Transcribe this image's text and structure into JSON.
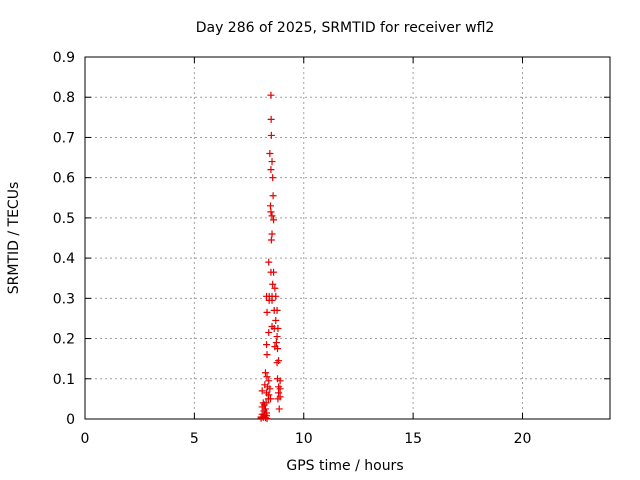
{
  "chart_data": {
    "type": "scatter",
    "title": "Day 286 of 2025, SRMTID for receiver wfl2",
    "xlabel": "GPS time / hours",
    "ylabel": "SRMTID / TECUs",
    "xlim": [
      0,
      24
    ],
    "ylim": [
      0,
      0.9
    ],
    "xticks": [
      0,
      5,
      10,
      15,
      20
    ],
    "yticks": [
      0,
      0.1,
      0.2,
      0.3,
      0.4,
      0.5,
      0.6,
      0.7,
      0.8,
      0.9
    ],
    "grid": true,
    "legend": "none",
    "marker": "plus",
    "color": "#e60000",
    "series": [
      {
        "points": [
          [
            8.5,
            0.805
          ],
          [
            8.51,
            0.745
          ],
          [
            8.52,
            0.705
          ],
          [
            8.45,
            0.66
          ],
          [
            8.55,
            0.64
          ],
          [
            8.5,
            0.62
          ],
          [
            8.58,
            0.6
          ],
          [
            8.6,
            0.555
          ],
          [
            8.48,
            0.53
          ],
          [
            8.5,
            0.515
          ],
          [
            8.55,
            0.505
          ],
          [
            8.62,
            0.495
          ],
          [
            8.55,
            0.46
          ],
          [
            8.52,
            0.445
          ],
          [
            8.4,
            0.39
          ],
          [
            8.5,
            0.365
          ],
          [
            8.62,
            0.365
          ],
          [
            8.58,
            0.335
          ],
          [
            8.68,
            0.325
          ],
          [
            8.3,
            0.305
          ],
          [
            8.42,
            0.305
          ],
          [
            8.55,
            0.305
          ],
          [
            8.72,
            0.305
          ],
          [
            8.42,
            0.295
          ],
          [
            8.55,
            0.295
          ],
          [
            8.32,
            0.265
          ],
          [
            8.65,
            0.27
          ],
          [
            8.78,
            0.27
          ],
          [
            8.72,
            0.245
          ],
          [
            8.55,
            0.23
          ],
          [
            8.65,
            0.225
          ],
          [
            8.82,
            0.225
          ],
          [
            8.4,
            0.215
          ],
          [
            8.78,
            0.205
          ],
          [
            8.75,
            0.19
          ],
          [
            8.68,
            0.18
          ],
          [
            8.8,
            0.175
          ],
          [
            8.3,
            0.185
          ],
          [
            8.32,
            0.16
          ],
          [
            8.85,
            0.145
          ],
          [
            8.78,
            0.14
          ],
          [
            8.25,
            0.115
          ],
          [
            8.32,
            0.105
          ],
          [
            8.4,
            0.095
          ],
          [
            8.8,
            0.1
          ],
          [
            8.92,
            0.095
          ],
          [
            8.22,
            0.085
          ],
          [
            8.35,
            0.08
          ],
          [
            8.45,
            0.075
          ],
          [
            8.85,
            0.08
          ],
          [
            8.92,
            0.075
          ],
          [
            8.1,
            0.07
          ],
          [
            8.3,
            0.065
          ],
          [
            8.4,
            0.06
          ],
          [
            8.85,
            0.065
          ],
          [
            8.92,
            0.055
          ],
          [
            8.38,
            0.05
          ],
          [
            8.48,
            0.05
          ],
          [
            8.82,
            0.05
          ],
          [
            8.15,
            0.04
          ],
          [
            8.28,
            0.04
          ],
          [
            8.2,
            0.035
          ],
          [
            8.1,
            0.03
          ],
          [
            8.25,
            0.025
          ],
          [
            8.88,
            0.025
          ],
          [
            8.18,
            0.02
          ],
          [
            8.3,
            0.015
          ],
          [
            8.1,
            0.012
          ],
          [
            8.22,
            0.01
          ],
          [
            8.3,
            0.008
          ],
          [
            8.05,
            0.005
          ],
          [
            8.15,
            0.004
          ],
          [
            8.25,
            0.003
          ],
          [
            8.05,
            0.002
          ],
          [
            8.32,
            0.001
          ]
        ]
      }
    ]
  }
}
